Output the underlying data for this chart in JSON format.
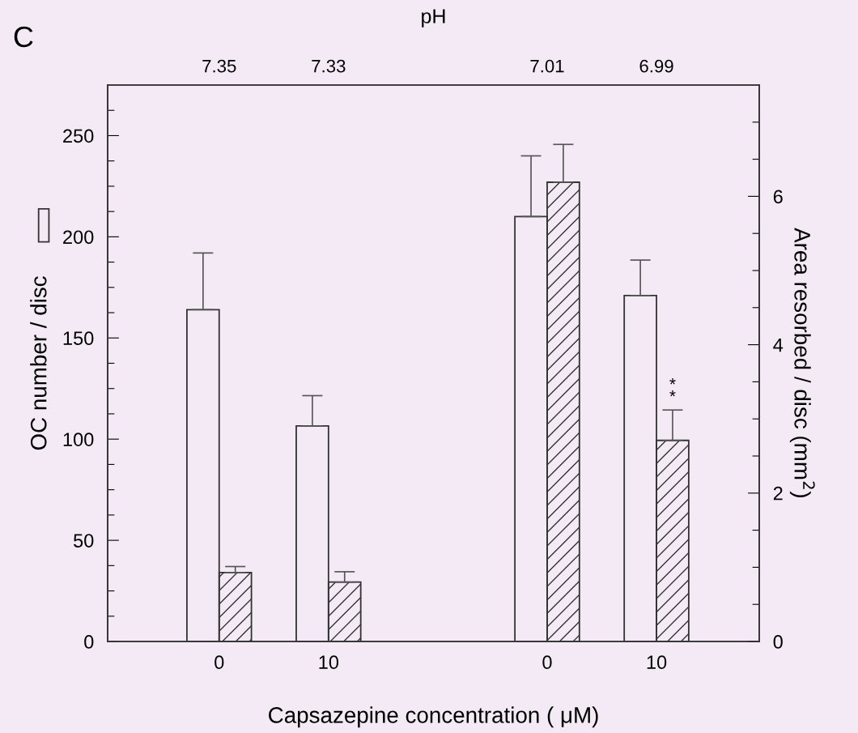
{
  "chart_data": {
    "type": "bar",
    "title": "pH",
    "xlabel": "Capsazepine concentration ( μM)",
    "ylabel": "OC number / disc",
    "y2label": "Area resorbed / disc (mm$^{2}$)",
    "categories": [
      "0",
      "10",
      null,
      "0",
      "10"
    ],
    "series": [
      {
        "color": "#333333",
        "values": [
          164,
          106.5,
          null,
          210,
          171
        ],
        "errors": [
          [
            164,
            192
          ],
          [
            106.5,
            121.5
          ],
          null,
          [
            210,
            240
          ],
          [
            171,
            188.5
          ]
        ]
      },
      {
        "color": "#333333",
        "axis": "y2",
        "values": [
          0.93,
          0.8,
          null,
          6.19,
          2.71
        ],
        "errors": [
          [
            0.93,
            1.01
          ],
          [
            0.8,
            0.94
          ],
          null,
          [
            6.19,
            6.7
          ],
          [
            2.71,
            3.12
          ]
        ]
      }
    ],
    "ylim": [
      0,
      275
    ],
    "yticks": [
      0,
      {
        "value": 12.5,
        "label": null
      },
      {
        "value": 25,
        "label": null
      },
      {
        "value": 37.5,
        "label": null
      },
      50,
      {
        "value": 62.5,
        "label": null
      },
      {
        "value": 75,
        "label": null
      },
      {
        "value": 87.5,
        "label": null
      },
      100,
      {
        "value": 112.5,
        "label": null
      },
      {
        "value": 125,
        "label": null
      },
      {
        "value": 137.5,
        "label": null
      },
      150,
      {
        "value": 162.5,
        "label": null
      },
      {
        "value": 175,
        "label": null
      },
      {
        "value": 187.5,
        "label": null
      },
      200,
      {
        "value": 212.5,
        "label": null
      },
      {
        "value": 225,
        "label": null
      },
      {
        "value": 237.5,
        "label": null
      },
      250,
      {
        "value": 262.5,
        "label": null
      }
    ],
    "y2lim": [
      0,
      7.5
    ],
    "y2ticks": [
      0,
      {
        "value": 0.5,
        "label": null
      },
      {
        "value": 1,
        "label": null
      },
      {
        "value": 1.5,
        "label": null
      },
      2,
      {
        "value": 2.5,
        "label": null
      },
      {
        "value": 3,
        "label": null
      },
      {
        "value": 3.5,
        "label": null
      },
      4,
      {
        "value": 4.5,
        "label": null
      },
      {
        "value": 5,
        "label": null
      },
      {
        "value": 5.5,
        "label": null
      },
      6,
      {
        "value": 6.5,
        "label": null
      },
      {
        "value": 7,
        "label": null
      }
    ],
    "annotations": [
      "C",
      "7.35",
      "7.33",
      "7.01",
      "6.99",
      "*\n*"
    ],
    "grid": false,
    "legend": false
  }
}
